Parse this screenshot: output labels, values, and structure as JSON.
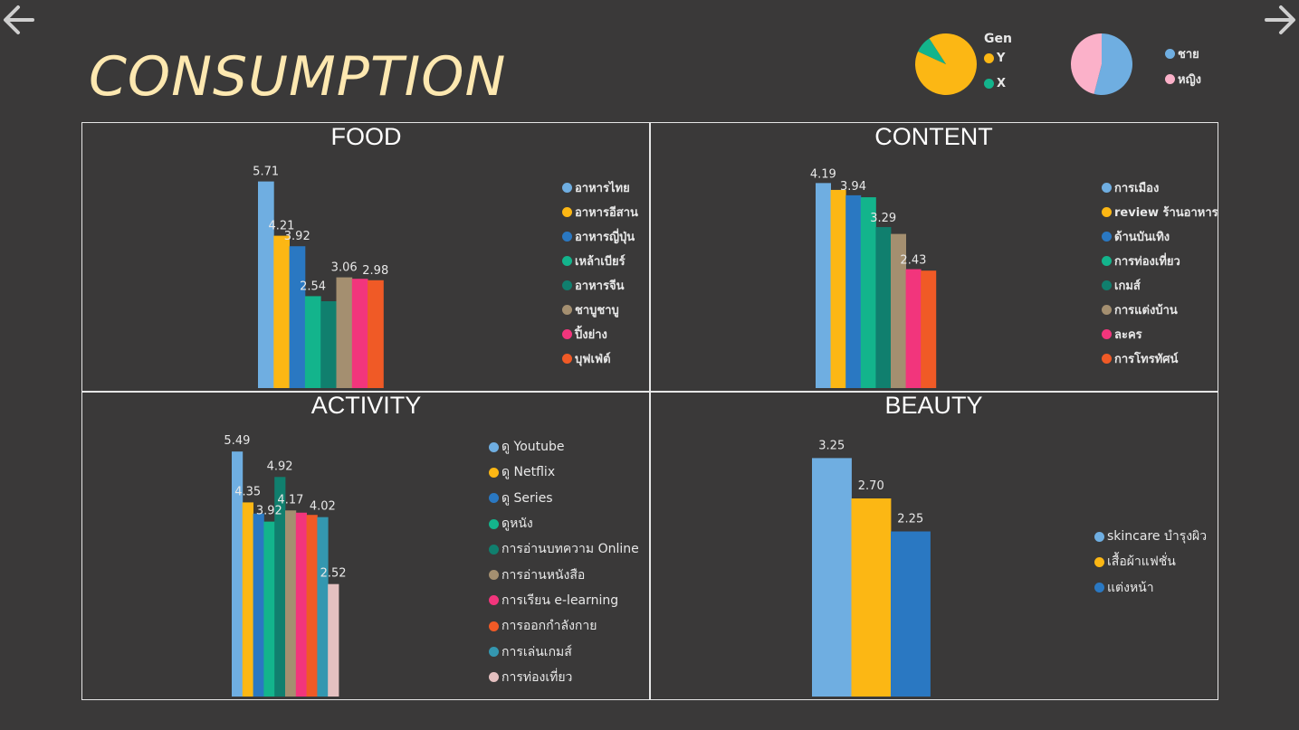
{
  "nav": {
    "back_icon": "arrow-left-icon",
    "forward_icon": "arrow-right-icon"
  },
  "title": "CONSUMPTION",
  "gen_pie": {
    "legend_title": "Gen",
    "slices": [
      {
        "label": "Y",
        "value": 91,
        "color": "#fcb714"
      },
      {
        "label": "X",
        "value": 9,
        "color": "#13b48c"
      }
    ]
  },
  "gender_pie": {
    "slices": [
      {
        "label": "ชาย",
        "value": 54,
        "color": "#6faee1"
      },
      {
        "label": "หญิง",
        "value": 46,
        "color": "#fbb1c9"
      }
    ]
  },
  "chart_data": [
    {
      "type": "bar",
      "title": "FOOD",
      "ylim": [
        0,
        6.5
      ],
      "categories": [
        "อาหารไทย",
        "อาหารอีสาน",
        "อาหารญี่ปุ่น",
        "เหล้าเบียร์",
        "อาหารจีน",
        "ชาบูชาบู",
        "ปิ้งย่าง",
        "บุฟเฟ่ต์"
      ],
      "values": [
        5.71,
        4.21,
        3.92,
        2.54,
        2.4,
        3.06,
        3.02,
        2.98
      ],
      "labels": [
        "5.71",
        "4.21",
        "3.92",
        "2.54",
        "",
        "3.06",
        "",
        "2.98"
      ],
      "colors": [
        "#6faee1",
        "#fcb714",
        "#2a78c2",
        "#13b48c",
        "#107f6e",
        "#a48f70",
        "#f2357c",
        "#f05a26"
      ]
    },
    {
      "type": "bar",
      "title": "CONTENT",
      "ylim": [
        0,
        4.4
      ],
      "categories": [
        "การเมือง",
        "review ร้านอาหาร",
        "ด้านบันเทิง",
        "การท่องเที่ยว",
        "เกมส์",
        "การแต่งบ้าน",
        "ละคร",
        "การโทรทัศน์"
      ],
      "values": [
        4.19,
        4.05,
        3.94,
        3.9,
        3.29,
        3.15,
        2.43,
        2.4
      ],
      "labels": [
        "4.19",
        "",
        "3.94",
        "",
        "3.29",
        "",
        "2.43",
        ""
      ],
      "colors": [
        "#6faee1",
        "#fcb714",
        "#2a78c2",
        "#13b48c",
        "#107f6e",
        "#a48f70",
        "#f2357c",
        "#f05a26"
      ]
    },
    {
      "type": "bar",
      "title": "ACTIVITY",
      "ylim": [
        0,
        6.0
      ],
      "categories": [
        "ดู Youtube",
        "ดู Netflix",
        "ดู Series",
        "ดูหนัง",
        "การอ่านบทความ Online",
        "การอ่านหนังสือ",
        "การเรียน e-learning",
        "การออกกำลังกาย",
        "การเล่นเกมส์",
        "การท่องเที่ยว"
      ],
      "values": [
        5.49,
        4.35,
        4.1,
        3.92,
        4.92,
        4.17,
        4.12,
        4.07,
        4.02,
        2.52
      ],
      "labels": [
        "5.49",
        "4.35",
        "",
        "3.92",
        "4.92",
        "4.17",
        "",
        "",
        "4.02",
        "2.52"
      ],
      "colors": [
        "#6faee1",
        "#fcb714",
        "#2a78c2",
        "#13b48c",
        "#107f6e",
        "#a48f70",
        "#f2357c",
        "#f05a26",
        "#3497b0",
        "#e4c0c0"
      ]
    },
    {
      "type": "bar",
      "title": "BEAUTY",
      "ylim": [
        0,
        3.6
      ],
      "categories": [
        "skincare บำรุงผิว",
        "เสื้อผ้าแฟชั่น",
        "แต่งหน้า"
      ],
      "values": [
        3.25,
        2.7,
        2.25
      ],
      "labels": [
        "3.25",
        "2.70",
        "2.25"
      ],
      "colors": [
        "#6faee1",
        "#fcb714",
        "#2a78c2"
      ]
    }
  ]
}
